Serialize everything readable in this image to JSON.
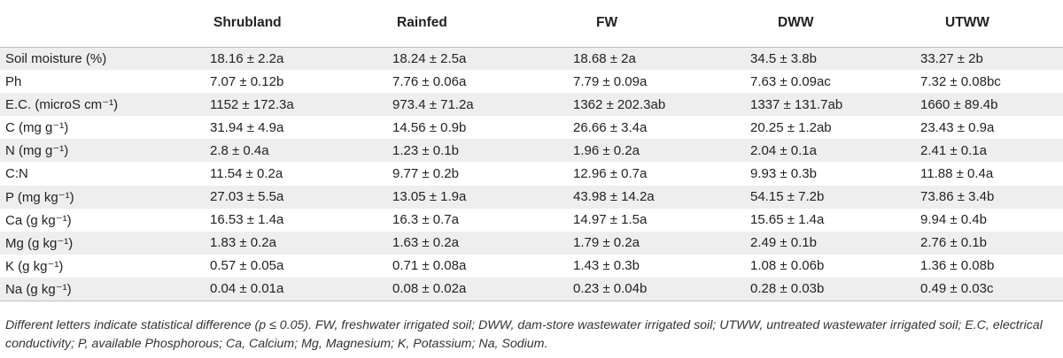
{
  "columns": [
    "",
    "Shrubland",
    "Rainfed",
    "FW",
    "DWW",
    "UTWW"
  ],
  "rows": [
    {
      "label": "Soil moisture (%)",
      "values": [
        "18.16 ± 2.2a",
        "18.24 ± 2.5a",
        "18.68 ± 2a",
        "34.5 ± 3.8b",
        "33.27 ± 2b"
      ]
    },
    {
      "label": "Ph",
      "values": [
        "7.07 ± 0.12b",
        "7.76 ± 0.06a",
        "7.79 ± 0.09a",
        "7.63 ± 0.09ac",
        "7.32 ± 0.08bc"
      ]
    },
    {
      "label": "E.C. (microS cm⁻¹)",
      "values": [
        "1152 ± 172.3a",
        "973.4 ± 71.2a",
        "1362 ± 202.3ab",
        "1337 ± 131.7ab",
        "1660 ± 89.4b"
      ]
    },
    {
      "label": "C (mg g⁻¹)",
      "values": [
        "31.94 ± 4.9a",
        "14.56 ± 0.9b",
        "26.66 ± 3.4a",
        "20.25 ± 1.2ab",
        "23.43 ± 0.9a"
      ]
    },
    {
      "label": "N (mg g⁻¹)",
      "values": [
        "2.8 ± 0.4a",
        "1.23 ± 0.1b",
        "1.96 ± 0.2a",
        "2.04 ± 0.1a",
        "2.41 ± 0.1a"
      ]
    },
    {
      "label": "C:N",
      "values": [
        "11.54 ± 0.2a",
        "9.77 ± 0.2b",
        "12.96 ± 0.7a",
        "9.93 ± 0.3b",
        "11.88 ± 0.4a"
      ]
    },
    {
      "label": "P (mg kg⁻¹)",
      "values": [
        "27.03 ± 5.5a",
        "13.05 ± 1.9a",
        "43.98 ± 14.2a",
        "54.15 ± 7.2b",
        "73.86 ± 3.4b"
      ]
    },
    {
      "label": "Ca (g kg⁻¹)",
      "values": [
        "16.53 ± 1.4a",
        "16.3 ± 0.7a",
        "14.97 ± 1.5a",
        "15.65 ± 1.4a",
        "9.94 ± 0.4b"
      ]
    },
    {
      "label": "Mg (g kg⁻¹)",
      "values": [
        "1.83 ± 0.2a",
        "1.63 ± 0.2a",
        "1.79 ± 0.2a",
        "2.49 ± 0.1b",
        "2.76 ± 0.1b"
      ]
    },
    {
      "label": "K (g kg⁻¹)",
      "values": [
        "0.57 ± 0.05a",
        "0.71 ± 0.08a",
        "1.43 ± 0.3b",
        "1.08 ± 0.06b",
        "1.36 ± 0.08b"
      ]
    },
    {
      "label": "Na (g kg⁻¹)",
      "values": [
        "0.04 ± 0.01a",
        "0.08 ± 0.02a",
        "0.23 ± 0.04b",
        "0.28 ± 0.03b",
        "0.49 ± 0.03c"
      ]
    }
  ],
  "footnote": "Different letters indicate statistical difference (p ≤ 0.05). FW, freshwater irrigated soil; DWW, dam-store wastewater irrigated soil; UTWW, untreated wastewater irrigated soil; E.C, electrical conductivity; P, available Phosphorous; Ca, Calcium; Mg, Magnesium; K, Potassium; Na, Sodium."
}
